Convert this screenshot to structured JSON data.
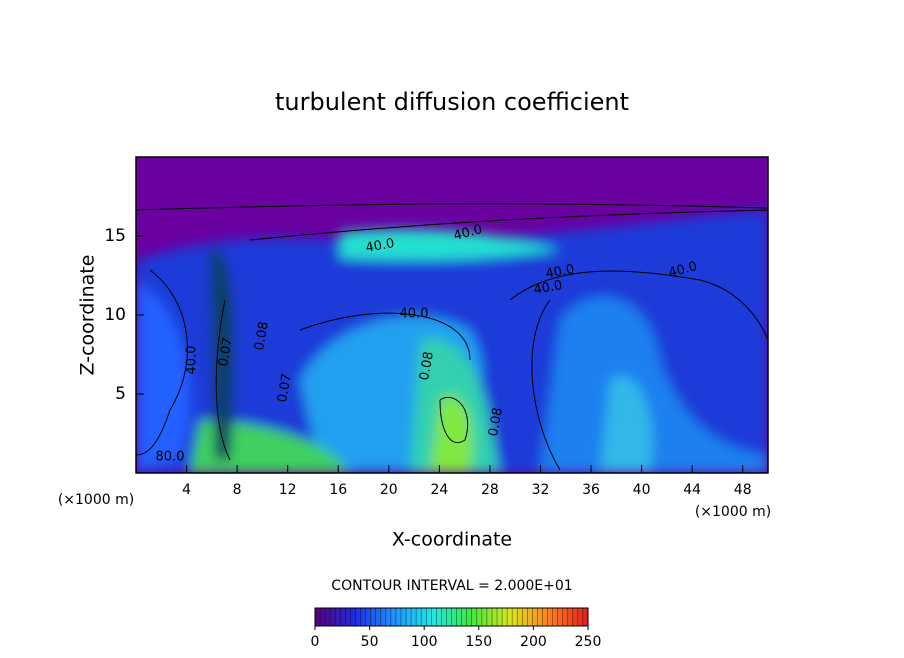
{
  "chart_data": {
    "type": "contour",
    "title": "turbulent diffusion coefficient",
    "x_label": "X-coordinate",
    "y_label": "Z-coordinate",
    "x_unit_label": "(×1000 m)",
    "x_unit_label_right": "(×1000 m)",
    "xlim": [
      0,
      50
    ],
    "ylim": [
      0,
      20
    ],
    "xticks": [
      4,
      8,
      12,
      16,
      20,
      24,
      28,
      32,
      36,
      40,
      44,
      48
    ],
    "yticks": [
      5,
      10,
      15
    ],
    "contour_labels": [
      "40.0",
      "40.0",
      "40.0",
      "40.0",
      "40.0",
      "40.0",
      "80.0",
      "0.08",
      "0.08",
      "0.08",
      "0.07",
      "0.07",
      "40.0"
    ],
    "contour_interval_text": "CONTOUR INTERVAL = 2.000E+01",
    "colorbar": {
      "clim": [
        0,
        250
      ],
      "ticks": [
        0,
        50,
        100,
        150,
        200,
        250
      ],
      "colors": [
        "#5a007a",
        "#1e2be0",
        "#1f8fff",
        "#20e8e8",
        "#40e840",
        "#d8e820",
        "#ff8020",
        "#e02020"
      ]
    }
  }
}
